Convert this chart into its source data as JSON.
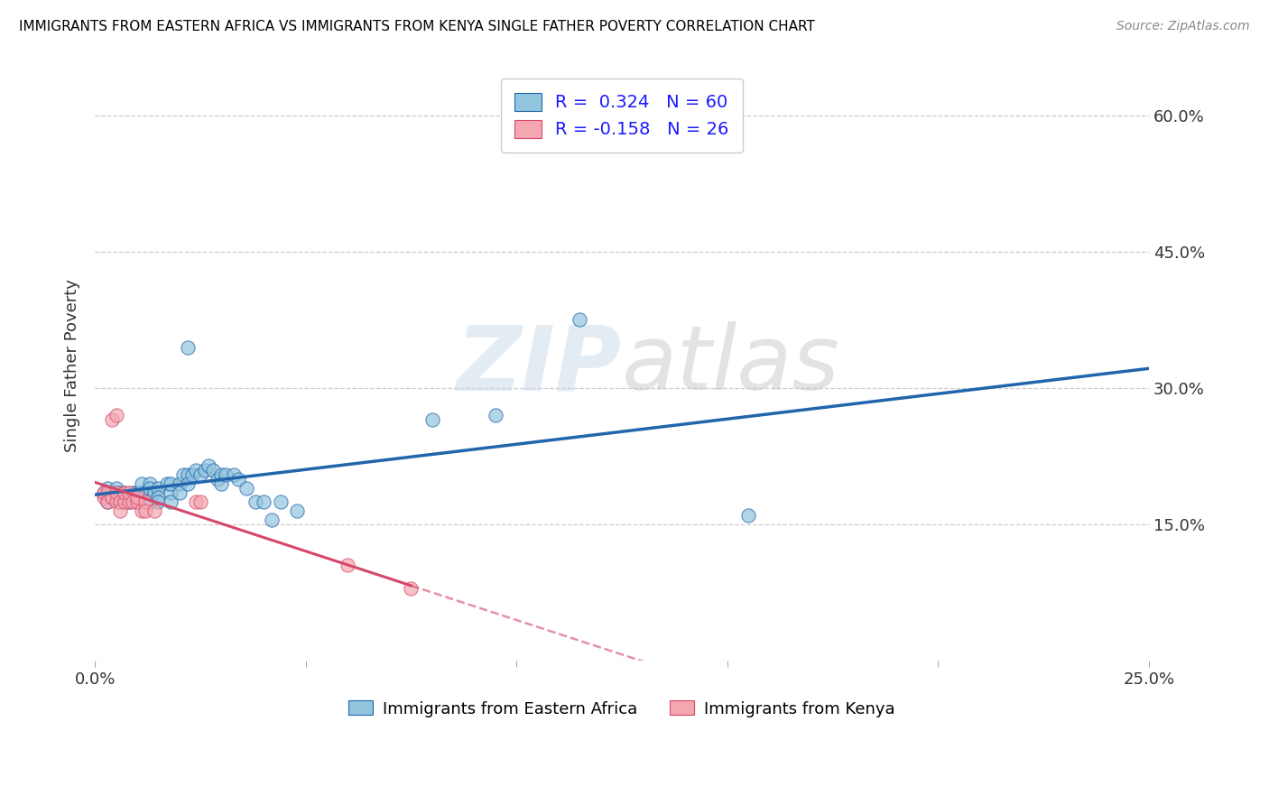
{
  "title": "IMMIGRANTS FROM EASTERN AFRICA VS IMMIGRANTS FROM KENYA SINGLE FATHER POVERTY CORRELATION CHART",
  "source": "Source: ZipAtlas.com",
  "ylabel": "Single Father Poverty",
  "xlim": [
    0.0,
    0.25
  ],
  "ylim": [
    0.0,
    0.65
  ],
  "R_blue": 0.324,
  "N_blue": 60,
  "R_pink": -0.158,
  "N_pink": 26,
  "blue_color": "#92c5de",
  "pink_color": "#f4a7b1",
  "blue_line_color": "#2166ac",
  "pink_line_color": "#d6476b",
  "watermark_zip": "ZIP",
  "watermark_atlas": "atlas",
  "blue_scatter": [
    [
      0.002,
      0.185
    ],
    [
      0.003,
      0.19
    ],
    [
      0.003,
      0.175
    ],
    [
      0.004,
      0.185
    ],
    [
      0.004,
      0.18
    ],
    [
      0.005,
      0.185
    ],
    [
      0.005,
      0.18
    ],
    [
      0.005,
      0.19
    ],
    [
      0.006,
      0.175
    ],
    [
      0.006,
      0.185
    ],
    [
      0.007,
      0.18
    ],
    [
      0.007,
      0.185
    ],
    [
      0.008,
      0.18
    ],
    [
      0.008,
      0.175
    ],
    [
      0.009,
      0.18
    ],
    [
      0.009,
      0.185
    ],
    [
      0.01,
      0.175
    ],
    [
      0.01,
      0.185
    ],
    [
      0.011,
      0.185
    ],
    [
      0.011,
      0.195
    ],
    [
      0.012,
      0.185
    ],
    [
      0.013,
      0.195
    ],
    [
      0.013,
      0.175
    ],
    [
      0.013,
      0.19
    ],
    [
      0.014,
      0.185
    ],
    [
      0.015,
      0.19
    ],
    [
      0.015,
      0.18
    ],
    [
      0.015,
      0.175
    ],
    [
      0.017,
      0.195
    ],
    [
      0.018,
      0.185
    ],
    [
      0.018,
      0.175
    ],
    [
      0.018,
      0.195
    ],
    [
      0.02,
      0.195
    ],
    [
      0.02,
      0.185
    ],
    [
      0.021,
      0.205
    ],
    [
      0.022,
      0.205
    ],
    [
      0.022,
      0.195
    ],
    [
      0.023,
      0.205
    ],
    [
      0.024,
      0.21
    ],
    [
      0.025,
      0.205
    ],
    [
      0.026,
      0.21
    ],
    [
      0.027,
      0.215
    ],
    [
      0.028,
      0.21
    ],
    [
      0.029,
      0.2
    ],
    [
      0.03,
      0.205
    ],
    [
      0.03,
      0.195
    ],
    [
      0.031,
      0.205
    ],
    [
      0.033,
      0.205
    ],
    [
      0.034,
      0.2
    ],
    [
      0.036,
      0.19
    ],
    [
      0.038,
      0.175
    ],
    [
      0.04,
      0.175
    ],
    [
      0.042,
      0.155
    ],
    [
      0.044,
      0.175
    ],
    [
      0.048,
      0.165
    ],
    [
      0.022,
      0.345
    ],
    [
      0.08,
      0.265
    ],
    [
      0.095,
      0.27
    ],
    [
      0.115,
      0.375
    ],
    [
      0.155,
      0.16
    ]
  ],
  "pink_scatter": [
    [
      0.002,
      0.18
    ],
    [
      0.002,
      0.185
    ],
    [
      0.003,
      0.185
    ],
    [
      0.003,
      0.175
    ],
    [
      0.004,
      0.265
    ],
    [
      0.004,
      0.18
    ],
    [
      0.005,
      0.27
    ],
    [
      0.005,
      0.175
    ],
    [
      0.005,
      0.185
    ],
    [
      0.006,
      0.175
    ],
    [
      0.006,
      0.165
    ],
    [
      0.007,
      0.175
    ],
    [
      0.007,
      0.185
    ],
    [
      0.008,
      0.175
    ],
    [
      0.008,
      0.185
    ],
    [
      0.009,
      0.175
    ],
    [
      0.01,
      0.175
    ],
    [
      0.01,
      0.18
    ],
    [
      0.011,
      0.165
    ],
    [
      0.012,
      0.175
    ],
    [
      0.012,
      0.165
    ],
    [
      0.014,
      0.165
    ],
    [
      0.024,
      0.175
    ],
    [
      0.025,
      0.175
    ],
    [
      0.06,
      0.105
    ],
    [
      0.075,
      0.08
    ]
  ]
}
